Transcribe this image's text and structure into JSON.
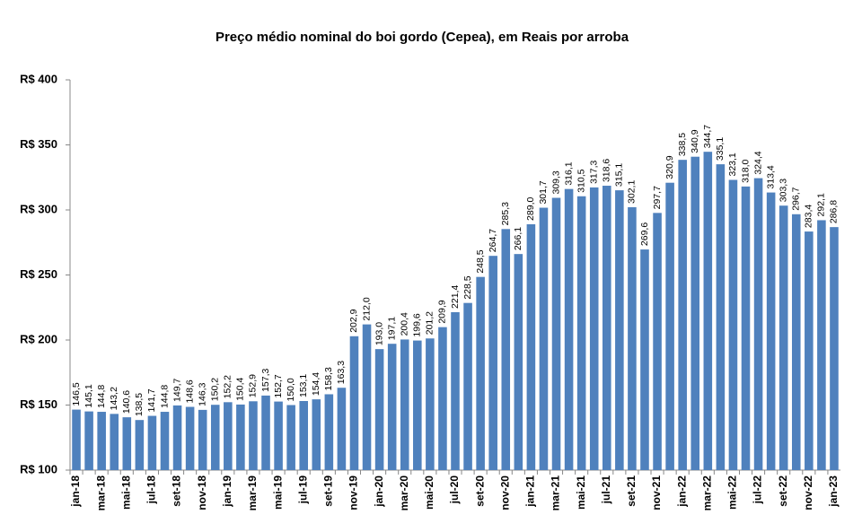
{
  "chart_data": {
    "type": "bar",
    "title": "Preço médio nominal do boi gordo (Cepea), em Reais por arroba",
    "categories": [
      "jan-18",
      null,
      "mar-18",
      null,
      "mai-18",
      null,
      "jul-18",
      null,
      "set-18",
      null,
      "nov-18",
      null,
      "jan-19",
      null,
      "mar-19",
      null,
      "mai-19",
      null,
      "jul-19",
      null,
      "set-19",
      null,
      "nov-19",
      null,
      "jan-20",
      null,
      "mar-20",
      null,
      "mai-20",
      null,
      "jul-20",
      null,
      "set-20",
      null,
      "nov-20",
      null,
      "jan-21",
      null,
      "mar-21",
      null,
      "mai-21",
      null,
      "jul-21",
      null,
      "set-21",
      null,
      "nov-21",
      null,
      "jan-22",
      null,
      "mar-22",
      null,
      "mai-22",
      null,
      "jul-22",
      null,
      "set-22",
      null,
      "nov-22",
      null,
      "jan-23"
    ],
    "values": [
      146.5,
      145.1,
      144.8,
      143.2,
      140.6,
      138.5,
      141.7,
      144.8,
      149.7,
      148.6,
      146.3,
      150.2,
      152.2,
      150.4,
      152.9,
      157.3,
      152.7,
      150.0,
      153.1,
      154.4,
      158.3,
      163.3,
      202.9,
      212.0,
      193.0,
      197.1,
      200.4,
      199.6,
      201.2,
      209.9,
      221.4,
      228.5,
      248.5,
      264.7,
      285.3,
      266.1,
      289.0,
      301.7,
      309.3,
      316.1,
      310.5,
      317.3,
      318.6,
      315.1,
      302.1,
      269.6,
      297.7,
      320.9,
      338.5,
      340.9,
      344.7,
      335.1,
      323.1,
      318.0,
      324.4,
      313.4,
      303.3,
      296.7,
      283.4,
      292.1,
      286.8
    ],
    "value_labels": [
      "146,5",
      "145,1",
      "144,8",
      "143,2",
      "140,6",
      "138,5",
      "141,7",
      "144,8",
      "149,7",
      "148,6",
      "146,3",
      "150,2",
      "152,2",
      "150,4",
      "152,9",
      "157,3",
      "152,7",
      "150,0",
      "153,1",
      "154,4",
      "158,3",
      "163,3",
      "202,9",
      "212,0",
      "193,0",
      "197,1",
      "200,4",
      "199,6",
      "201,2",
      "209,9",
      "221,4",
      "228,5",
      "248,5",
      "264,7",
      "285,3",
      "266,1",
      "289,0",
      "301,7",
      "309,3",
      "316,1",
      "310,5",
      "317,3",
      "318,6",
      "315,1",
      "302,1",
      "269,6",
      "297,7",
      "320,9",
      "338,5",
      "340,9",
      "344,7",
      "335,1",
      "323,1",
      "318,0",
      "324,4",
      "313,4",
      "303,3",
      "296,7",
      "283,4",
      "292,1",
      "286,8"
    ],
    "color": "#4f81bd",
    "ylim": [
      100,
      400
    ],
    "yticks": [
      {
        "value": 100,
        "label": "R$ 100"
      },
      {
        "value": 150,
        "label": "R$ 150"
      },
      {
        "value": 200,
        "label": "R$ 200"
      },
      {
        "value": 250,
        "label": "R$ 250"
      },
      {
        "value": 300,
        "label": "R$ 300"
      },
      {
        "value": 350,
        "label": "R$ 350"
      },
      {
        "value": 400,
        "label": "R$ 400"
      }
    ],
    "grid": false
  }
}
